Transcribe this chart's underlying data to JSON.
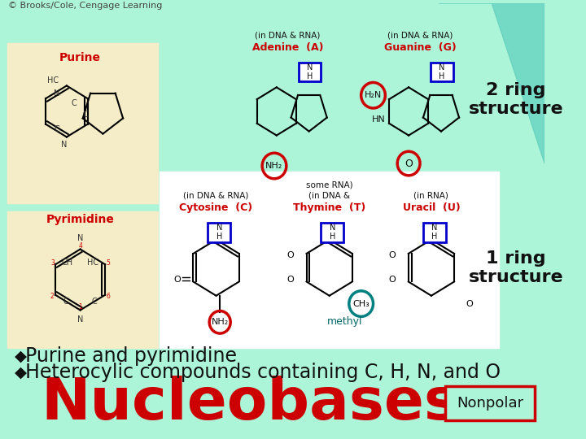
{
  "bg_color": "#adf5d8",
  "title": "Nucleobases",
  "title_color": "#cc0000",
  "title_fontsize": 52,
  "title_bold": true,
  "nonpolar_box_text": "Nonpolar",
  "nonpolar_box_color": "#cc0000",
  "bullet1": "Heterocylic compounds containing C, H, N, and O",
  "bullet2": "Purine and pyrimidine",
  "bullet_fontsize": 17,
  "bullet_color": "#111111",
  "bullet_symbol": "◆",
  "panel_bg_top": "#f5ecc8",
  "panel_bg_bottom": "#f5ecc8",
  "white_panel_color": "#ffffff",
  "ring1_label_color": "#cc0000",
  "ring2_label_color": "#cc0000",
  "annotation_color": "#006666",
  "blue_box_color": "#0000cc",
  "red_circle_color": "#cc0000",
  "teal_circle_color": "#008080",
  "side_text_1": "1 ring\nstructure",
  "side_text_2": "2 ring\nstructure",
  "side_text_color": "#111111",
  "side_text_fontsize": 16,
  "footer": "© Brooks/Cole, Cengage Learning",
  "footer_fontsize": 8,
  "footer_color": "#444444"
}
